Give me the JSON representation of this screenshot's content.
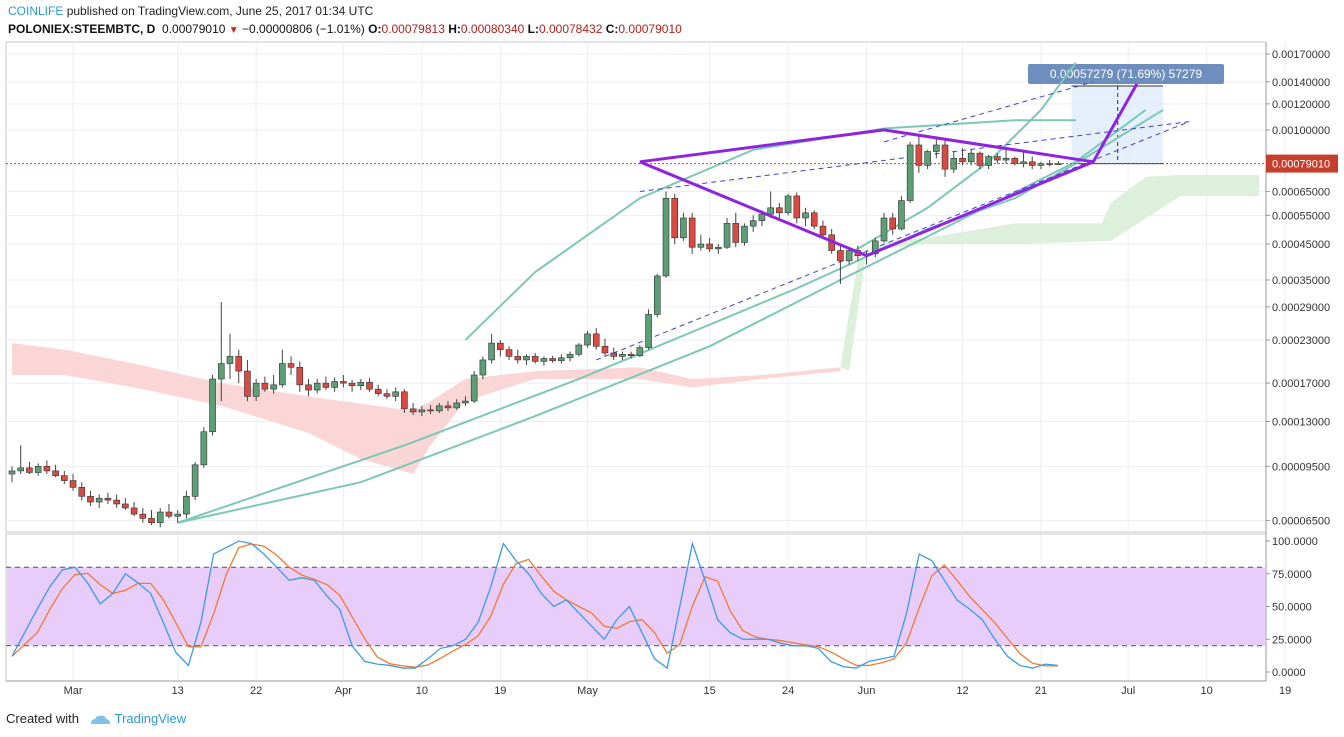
{
  "header": {
    "brand": "COINLIFE",
    "published_text": "published on TradingView.com, June 25, 2017 01:34 UTC",
    "symbol": "POLONIEX:STEEMBTC, D",
    "last": "0.00079010",
    "change": "−0.00000806 (−1.01%)",
    "open_label": "O:",
    "open": "0.00079813",
    "high_label": "H:",
    "high": "0.00080340",
    "low_label": "L:",
    "low": "0.00078432",
    "close_label": "C:",
    "close": "0.00079010"
  },
  "footer": {
    "created_with": "Created with",
    "brand": "TradingView"
  },
  "colors": {
    "up": "#5c9e76",
    "down": "#d84b43",
    "purple": "#8e24e0",
    "teal_arc": "#7cc7b6",
    "dashed": "#3f3fdc",
    "cloud_red": "#fbd2d2",
    "cloud_green": "#d8eed8",
    "stoch_band": "#e8ccfa",
    "stoch_k": "#3d9be6",
    "stoch_d": "#f07a33",
    "price_tag": "#c63f2c",
    "measure_tag": "#6e8fbd"
  },
  "chart_data": {
    "type": "candlestick",
    "y_axis": {
      "scale": "log",
      "ticks": [
        "0.00170000",
        "0.00140000",
        "0.00120000",
        "0.00100000",
        "0.00065000",
        "0.00055000",
        "0.00045000",
        "0.00035000",
        "0.00029000",
        "0.00023000",
        "0.00017000",
        "0.00013000",
        "0.00009500",
        "0.00006500"
      ],
      "range": [
        6e-05,
        0.00185
      ]
    },
    "x_axis": {
      "ticks": [
        "Mar",
        "13",
        "22",
        "Apr",
        "10",
        "19",
        "May",
        "15",
        "24",
        "Jun",
        "12",
        "21",
        "Jul",
        "10",
        "19"
      ]
    },
    "last_price_label": "0.00079010",
    "measure_label": "0.00057279 (71.69%) 57279",
    "candles": [
      [
        9e-05,
        9.5e-05,
        8.5e-05,
        9.2e-05
      ],
      [
        9.2e-05,
        0.00011,
        9e-05,
        9.4e-05
      ],
      [
        9.4e-05,
        9.8e-05,
        9e-05,
        9.1e-05
      ],
      [
        9.1e-05,
        9.7e-05,
        8.9e-05,
        9.5e-05
      ],
      [
        9.5e-05,
        9.9e-05,
        9e-05,
        9.2e-05
      ],
      [
        9.2e-05,
        9.6e-05,
        8.8e-05,
        8.9e-05
      ],
      [
        8.9e-05,
        9.2e-05,
        8.4e-05,
        8.6e-05
      ],
      [
        8.6e-05,
        9e-05,
        8e-05,
        8.2e-05
      ],
      [
        8.2e-05,
        8.5e-05,
        7.5e-05,
        7.7e-05
      ],
      [
        7.7e-05,
        8e-05,
        7.2e-05,
        7.4e-05
      ],
      [
        7.4e-05,
        7.8e-05,
        7.1e-05,
        7.6e-05
      ],
      [
        7.6e-05,
        7.9e-05,
        7.3e-05,
        7.5e-05
      ],
      [
        7.5e-05,
        7.8e-05,
        7.1e-05,
        7.3e-05
      ],
      [
        7.3e-05,
        7.6e-05,
        7e-05,
        7.1e-05
      ],
      [
        7.1e-05,
        7.4e-05,
        6.7e-05,
        6.8e-05
      ],
      [
        6.8e-05,
        7.1e-05,
        6.4e-05,
        6.6e-05
      ],
      [
        6.6e-05,
        7e-05,
        6.3e-05,
        6.4e-05
      ],
      [
        6.4e-05,
        7.1e-05,
        6.2e-05,
        6.9e-05
      ],
      [
        6.9e-05,
        7.3e-05,
        6.6e-05,
        6.7e-05
      ],
      [
        6.7e-05,
        7e-05,
        6.4e-05,
        6.8e-05
      ],
      [
        6.8e-05,
        8e-05,
        6.6e-05,
        7.7e-05
      ],
      [
        7.7e-05,
        9.8e-05,
        7.5e-05,
        9.6e-05
      ],
      [
        9.6e-05,
        0.000125,
        9.4e-05,
        0.000121
      ],
      [
        0.000121,
        0.00018,
        0.000118,
        0.000175
      ],
      [
        0.000175,
        0.0003,
        0.00015,
        0.000195
      ],
      [
        0.000195,
        0.00024,
        0.000175,
        0.000205
      ],
      [
        0.000205,
        0.000215,
        0.00017,
        0.000185
      ],
      [
        0.000185,
        0.0002,
        0.00015,
        0.000155
      ],
      [
        0.000155,
        0.000175,
        0.00015,
        0.00017
      ],
      [
        0.00017,
        0.000178,
        0.00016,
        0.000163
      ],
      [
        0.000163,
        0.00018,
        0.000158,
        0.000168
      ],
      [
        0.000168,
        0.000215,
        0.000165,
        0.000195
      ],
      [
        0.000195,
        0.000205,
        0.00018,
        0.00019
      ],
      [
        0.00019,
        0.000198,
        0.00016,
        0.000168
      ],
      [
        0.000168,
        0.000175,
        0.000155,
        0.000162
      ],
      [
        0.000162,
        0.000175,
        0.000158,
        0.00017
      ],
      [
        0.00017,
        0.000178,
        0.000162,
        0.000165
      ],
      [
        0.000165,
        0.000177,
        0.00016,
        0.000172
      ],
      [
        0.000172,
        0.00018,
        0.000165,
        0.00017
      ],
      [
        0.00017,
        0.000174,
        0.00016,
        0.000167
      ],
      [
        0.000167,
        0.000175,
        0.000162,
        0.000171
      ],
      [
        0.000171,
        0.000176,
        0.00016,
        0.000163
      ],
      [
        0.000163,
        0.000168,
        0.000155,
        0.000158
      ],
      [
        0.000158,
        0.000163,
        0.000152,
        0.000155
      ],
      [
        0.000155,
        0.000165,
        0.00015,
        0.00016
      ],
      [
        0.00016,
        0.000163,
        0.000138,
        0.000142
      ],
      [
        0.000142,
        0.000148,
        0.000136,
        0.000139
      ],
      [
        0.000139,
        0.000145,
        0.000135,
        0.000141
      ],
      [
        0.000141,
        0.000146,
        0.000137,
        0.00014
      ],
      [
        0.00014,
        0.000148,
        0.000138,
        0.000145
      ],
      [
        0.000145,
        0.00015,
        0.00014,
        0.000143
      ],
      [
        0.000143,
        0.000152,
        0.000141,
        0.000148
      ],
      [
        0.000148,
        0.000155,
        0.000145,
        0.00015
      ],
      [
        0.00015,
        0.000185,
        0.000148,
        0.00018
      ],
      [
        0.00018,
        0.000205,
        0.000175,
        0.0002
      ],
      [
        0.0002,
        0.00024,
        0.000195,
        0.000225
      ],
      [
        0.000225,
        0.00023,
        0.000205,
        0.000215
      ],
      [
        0.000215,
        0.00022,
        0.0002,
        0.000205
      ],
      [
        0.000205,
        0.000215,
        0.000195,
        0.0002
      ],
      [
        0.0002,
        0.000208,
        0.000193,
        0.000205
      ],
      [
        0.000205,
        0.00021,
        0.000195,
        0.000198
      ],
      [
        0.000198,
        0.000205,
        0.000192,
        0.000202
      ],
      [
        0.000202,
        0.000206,
        0.000196,
        0.000199
      ],
      [
        0.000199,
        0.000208,
        0.000195,
        0.000203
      ],
      [
        0.000203,
        0.000212,
        0.000198,
        0.000208
      ],
      [
        0.000208,
        0.000225,
        0.000205,
        0.000222
      ],
      [
        0.000222,
        0.000245,
        0.000218,
        0.00024
      ],
      [
        0.00024,
        0.00025,
        0.000215,
        0.00022
      ],
      [
        0.00022,
        0.000232,
        0.000205,
        0.00021
      ],
      [
        0.00021,
        0.000218,
        0.0002,
        0.000205
      ],
      [
        0.000205,
        0.000212,
        0.0002,
        0.000208
      ],
      [
        0.000208,
        0.000212,
        0.000202,
        0.000206
      ],
      [
        0.000206,
        0.000222,
        0.000204,
        0.000218
      ],
      [
        0.000218,
        0.000285,
        0.000215,
        0.000275
      ],
      [
        0.000275,
        0.000365,
        0.00027,
        0.00036
      ],
      [
        0.00036,
        0.00065,
        0.000355,
        0.00062
      ],
      [
        0.00062,
        0.00064,
        0.00045,
        0.00047
      ],
      [
        0.00047,
        0.00056,
        0.00046,
        0.00054
      ],
      [
        0.00054,
        0.00056,
        0.00042,
        0.00044
      ],
      [
        0.00044,
        0.00048,
        0.00043,
        0.00045
      ],
      [
        0.00045,
        0.00047,
        0.000425,
        0.000435
      ],
      [
        0.000435,
        0.00045,
        0.00042,
        0.00044
      ],
      [
        0.00044,
        0.00054,
        0.000435,
        0.00052
      ],
      [
        0.00052,
        0.00056,
        0.00044,
        0.000455
      ],
      [
        0.000455,
        0.00052,
        0.000445,
        0.00051
      ],
      [
        0.00051,
        0.00055,
        0.00049,
        0.00053
      ],
      [
        0.00053,
        0.00057,
        0.00051,
        0.000555
      ],
      [
        0.000555,
        0.00065,
        0.00054,
        0.00058
      ],
      [
        0.00058,
        0.0006,
        0.00054,
        0.00056
      ],
      [
        0.00056,
        0.00064,
        0.00055,
        0.00063
      ],
      [
        0.00063,
        0.000645,
        0.00052,
        0.00054
      ],
      [
        0.00054,
        0.00058,
        0.00051,
        0.00056
      ],
      [
        0.00056,
        0.00057,
        0.0005,
        0.00051
      ],
      [
        0.00051,
        0.00053,
        0.00047,
        0.00048
      ],
      [
        0.00048,
        0.0005,
        0.00042,
        0.00043
      ],
      [
        0.00043,
        0.00045,
        0.00034,
        0.0004
      ],
      [
        0.0004,
        0.00044,
        0.00039,
        0.00043
      ],
      [
        0.00043,
        0.000445,
        0.0004,
        0.000415
      ],
      [
        0.000415,
        0.00043,
        0.00039,
        0.00042
      ],
      [
        0.00042,
        0.00047,
        0.00041,
        0.00046
      ],
      [
        0.00046,
        0.00056,
        0.000455,
        0.00054
      ],
      [
        0.00054,
        0.00056,
        0.00048,
        0.0005
      ],
      [
        0.0005,
        0.00063,
        0.000495,
        0.00061
      ],
      [
        0.00061,
        0.00092,
        0.0006,
        0.0009
      ],
      [
        0.0009,
        0.00096,
        0.00074,
        0.00078
      ],
      [
        0.00078,
        0.00087,
        0.00076,
        0.00086
      ],
      [
        0.00086,
        0.00095,
        0.00082,
        0.0009
      ],
      [
        0.0009,
        0.00093,
        0.00072,
        0.00076
      ],
      [
        0.00076,
        0.00086,
        0.00074,
        0.00082
      ],
      [
        0.00082,
        0.00088,
        0.00078,
        0.0008
      ],
      [
        0.0008,
        0.00087,
        0.00078,
        0.00085
      ],
      [
        0.00085,
        0.00086,
        0.00076,
        0.00078
      ],
      [
        0.00078,
        0.00084,
        0.00076,
        0.00083
      ],
      [
        0.00083,
        0.00085,
        0.00079,
        0.00081
      ],
      [
        0.00081,
        0.00088,
        0.00079,
        0.00082
      ],
      [
        0.00082,
        0.00083,
        0.00078,
        0.00079
      ],
      [
        0.00079,
        0.00086,
        0.00077,
        0.0008
      ],
      [
        0.0008,
        0.00083,
        0.00076,
        0.00078
      ],
      [
        0.00078,
        0.0008,
        0.00076,
        0.00079
      ],
      [
        0.00079,
        0.00081,
        0.000775,
        0.000785
      ],
      [
        0.000785,
        0.000803,
        0.000784,
        0.00079
      ]
    ],
    "stochastic": {
      "ticks": [
        "100.0000",
        "75.0000",
        "50.0000",
        "25.0000",
        "0.0000"
      ],
      "band": [
        20,
        80
      ],
      "k": [
        12,
        30,
        48,
        65,
        78,
        80,
        68,
        52,
        60,
        75,
        68,
        60,
        38,
        15,
        5,
        38,
        90,
        95,
        100,
        98,
        90,
        80,
        70,
        72,
        70,
        58,
        48,
        20,
        8,
        6,
        5,
        3,
        3,
        10,
        18,
        20,
        25,
        38,
        65,
        98,
        85,
        75,
        60,
        50,
        55,
        45,
        35,
        25,
        40,
        50,
        30,
        10,
        3,
        50,
        98,
        70,
        40,
        30,
        25,
        25,
        25,
        22,
        20,
        20,
        18,
        8,
        4,
        3,
        8,
        10,
        12,
        45,
        90,
        85,
        70,
        55,
        48,
        40,
        25,
        12,
        5,
        3,
        6,
        5
      ]
    }
  }
}
